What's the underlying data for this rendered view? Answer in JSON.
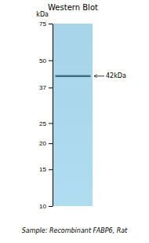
{
  "chart_data": {
    "type": "blot",
    "title": "Western Blot",
    "ylabel": "kDa",
    "log": "y",
    "ylim": [
      10,
      75
    ],
    "yticks": [
      75,
      50,
      37,
      25,
      20,
      15,
      10
    ],
    "values": [
      42
    ],
    "value_labels": [
      "42kDa"
    ],
    "data_labels": true,
    "color": "#3a6070",
    "annotations": [
      "Sample: Recombinant FABP6, Rat"
    ]
  }
}
